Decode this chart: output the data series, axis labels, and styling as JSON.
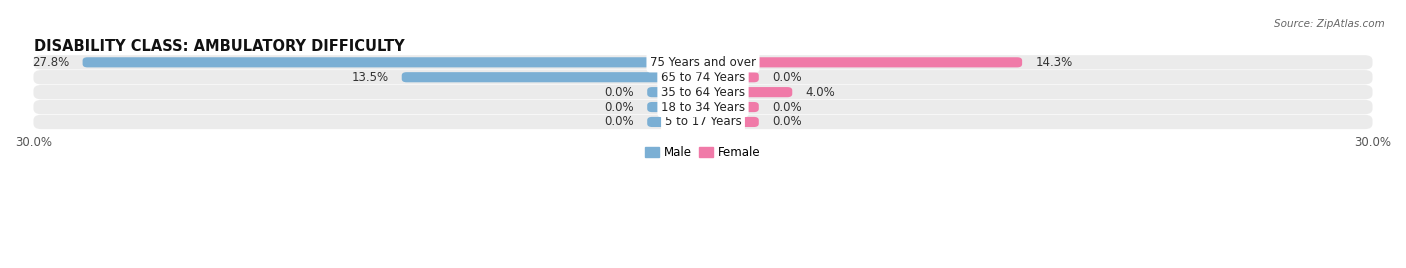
{
  "title": "DISABILITY CLASS: AMBULATORY DIFFICULTY",
  "source": "Source: ZipAtlas.com",
  "categories": [
    "5 to 17 Years",
    "18 to 34 Years",
    "35 to 64 Years",
    "65 to 74 Years",
    "75 Years and over"
  ],
  "male_values": [
    0.0,
    0.0,
    0.0,
    13.5,
    27.8
  ],
  "female_values": [
    0.0,
    0.0,
    4.0,
    0.0,
    14.3
  ],
  "male_color": "#7bafd4",
  "female_color": "#f07aa8",
  "row_bg_color": "#ebebeb",
  "axis_min": -30.0,
  "axis_max": 30.0,
  "label_fontsize": 8.5,
  "title_fontsize": 10.5,
  "bar_height": 0.68,
  "stub_size": 2.5
}
